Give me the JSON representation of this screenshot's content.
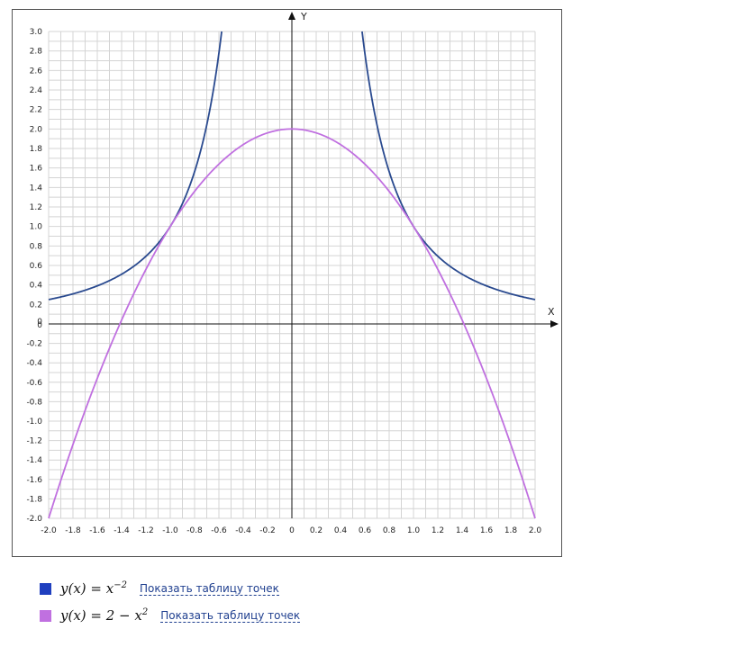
{
  "chart_data": {
    "type": "line",
    "xlabel": "X",
    "ylabel": "Y",
    "xlim": [
      -2.0,
      2.0
    ],
    "ylim": [
      -2.0,
      3.0
    ],
    "x_ticks": [
      "-2.0",
      "-1.8",
      "-1.6",
      "-1.4",
      "-1.2",
      "-1.0",
      "-0.8",
      "-0.6",
      "-0.4",
      "-0.2",
      "0",
      "0.2",
      "0.4",
      "0.6",
      "0.8",
      "1.0",
      "1.2",
      "1.4",
      "1.6",
      "1.8",
      "2.0"
    ],
    "y_ticks": [
      "3.0",
      "2.8",
      "2.6",
      "2.4",
      "2.2",
      "2.0",
      "1.8",
      "1.6",
      "1.4",
      "1.2",
      "1.0",
      "0.8",
      "0.6",
      "0.4",
      "0.2",
      "0",
      "0",
      "-0.2",
      "-0.4",
      "-0.6",
      "-0.8",
      "-1.0",
      "-1.2",
      "-1.4",
      "-1.6",
      "-1.8",
      "-2.0"
    ],
    "grid": true,
    "series": [
      {
        "color": "#2a4a8f",
        "x": [
          -2.0,
          -1.8,
          -1.6,
          -1.4,
          -1.2,
          -1.0,
          -0.8,
          -0.7,
          -0.6,
          -0.58,
          0.58,
          0.6,
          0.7,
          0.8,
          1.0,
          1.2,
          1.4,
          1.6,
          1.8,
          2.0
        ],
        "y": [
          0.25,
          0.309,
          0.391,
          0.51,
          0.694,
          1.0,
          1.5625,
          2.041,
          2.778,
          2.973,
          2.973,
          2.778,
          2.041,
          1.5625,
          1.0,
          0.694,
          0.51,
          0.391,
          0.309,
          0.25
        ]
      },
      {
        "color": "#c070e0",
        "x": [
          -2.0,
          -1.8,
          -1.6,
          -1.4,
          -1.2,
          -1.0,
          -0.8,
          -0.6,
          -0.4,
          -0.2,
          0,
          0.2,
          0.4,
          0.6,
          0.8,
          1.0,
          1.2,
          1.4,
          1.6,
          1.8,
          2.0
        ],
        "y": [
          -2.0,
          -1.24,
          -0.56,
          0.04,
          0.56,
          1.0,
          1.36,
          1.64,
          1.84,
          1.96,
          2.0,
          1.96,
          1.84,
          1.64,
          1.36,
          1.0,
          0.56,
          0.04,
          -0.56,
          -1.24,
          -2.0
        ]
      }
    ]
  },
  "legend": [
    {
      "color": "#1f3fbf",
      "formula_base": "y(x) = x",
      "formula_exp": "−2",
      "formula_tail": "",
      "link": "Показать таблицу точек"
    },
    {
      "color": "#c070e0",
      "formula_base": "y(x) = 2 − x",
      "formula_exp": "2",
      "formula_tail": "",
      "link": "Показать таблицу точек"
    }
  ]
}
